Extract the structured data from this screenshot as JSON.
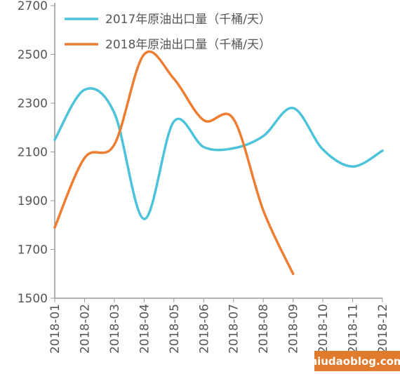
{
  "chart_data": {
    "type": "line",
    "categories": [
      "2018-01",
      "2018-02",
      "2018-03",
      "2018-04",
      "2018-05",
      "2018-06",
      "2018-07",
      "2018-08",
      "2018-09",
      "2018-10",
      "2018-11",
      "2018-12"
    ],
    "series": [
      {
        "name": "2017年原油出口量（千桶/天）",
        "color": "#4cc3d9",
        "values": [
          2150,
          2355,
          2260,
          1825,
          2225,
          2120,
          2115,
          2165,
          2280,
          2110,
          2040,
          2105
        ]
      },
      {
        "name": "2018年原油出口量（千桶/天）",
        "color": "#ed7d31",
        "values": [
          1790,
          2075,
          2130,
          2500,
          2400,
          2230,
          2235,
          1860,
          1600,
          null,
          null,
          null
        ]
      }
    ],
    "ylim": [
      1500,
      2700
    ],
    "yticks": [
      1500,
      1700,
      1900,
      2100,
      2300,
      2500,
      2700
    ],
    "grid": false,
    "legend": "top-left",
    "watermark": "niudaoblog.com"
  }
}
